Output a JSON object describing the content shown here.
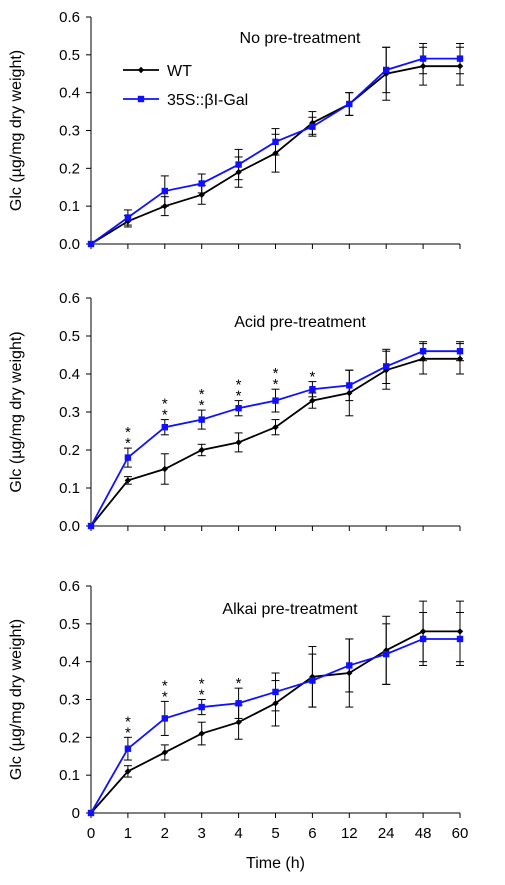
{
  "chart_data": [
    {
      "type": "line",
      "title": "No pre-treatment",
      "xlabel": "",
      "ylabel": "Glc (µg/mg dry weight)",
      "ylim": [
        0,
        0.6
      ],
      "yticks": [
        "0.0",
        "0.1",
        "0.2",
        "0.3",
        "0.4",
        "0.5",
        "0.6"
      ],
      "categories": [
        "0",
        "1",
        "2",
        "3",
        "4",
        "5",
        "6",
        "12",
        "24",
        "48",
        "60"
      ],
      "show_x_tick_labels": false,
      "legend": true,
      "legend_position": "top-left",
      "series": [
        {
          "name": "WT",
          "color": "#000000",
          "marker": "diamond",
          "values": [
            0,
            0.06,
            0.1,
            0.13,
            0.19,
            0.24,
            0.32,
            0.37,
            0.45,
            0.47,
            0.47
          ],
          "errors": [
            0,
            0.015,
            0.025,
            0.025,
            0.04,
            0.05,
            0.03,
            0.03,
            0.07,
            0.05,
            0.05
          ]
        },
        {
          "name": "35S::βI-Gal",
          "color": "#1010ff",
          "marker": "square",
          "values": [
            0,
            0.07,
            0.14,
            0.16,
            0.21,
            0.27,
            0.31,
            0.37,
            0.46,
            0.49,
            0.49
          ],
          "errors": [
            0,
            0.02,
            0.04,
            0.025,
            0.04,
            0.035,
            0.025,
            0.03,
            0.06,
            0.04,
            0.04
          ]
        }
      ],
      "significance": []
    },
    {
      "type": "line",
      "title": "Acid pre-treatment",
      "xlabel": "",
      "ylabel": "Glc (µg/mg dry weight)",
      "ylim": [
        0,
        0.6
      ],
      "yticks": [
        "0.0",
        "0.1",
        "0.2",
        "0.3",
        "0.4",
        "0.5",
        "0.6"
      ],
      "categories": [
        "0",
        "1",
        "2",
        "3",
        "4",
        "5",
        "6",
        "12",
        "24",
        "48",
        "60"
      ],
      "show_x_tick_labels": false,
      "legend": false,
      "series": [
        {
          "name": "WT",
          "color": "#000000",
          "marker": "diamond",
          "values": [
            0,
            0.12,
            0.15,
            0.2,
            0.22,
            0.26,
            0.33,
            0.35,
            0.41,
            0.44,
            0.44
          ],
          "errors": [
            0,
            0.01,
            0.04,
            0.015,
            0.025,
            0.02,
            0.02,
            0.06,
            0.05,
            0.04,
            0.04
          ]
        },
        {
          "name": "35S::βI-Gal",
          "color": "#1010ff",
          "marker": "square",
          "values": [
            0,
            0.18,
            0.26,
            0.28,
            0.31,
            0.33,
            0.36,
            0.37,
            0.42,
            0.46,
            0.46
          ],
          "errors": [
            0,
            0.025,
            0.02,
            0.025,
            0.02,
            0.03,
            0.02,
            0.04,
            0.045,
            0.025,
            0.025
          ]
        }
      ],
      "significance": [
        {
          "category": "1",
          "label": "**"
        },
        {
          "category": "2",
          "label": "**"
        },
        {
          "category": "3",
          "label": "**"
        },
        {
          "category": "4",
          "label": "**"
        },
        {
          "category": "5",
          "label": "**"
        },
        {
          "category": "6",
          "label": "*"
        }
      ]
    },
    {
      "type": "line",
      "title": "Alkai pre-treatment",
      "xlabel": "Time (h)",
      "ylabel": "Glc (µg/mg dry weight)",
      "ylim": [
        0,
        0.6
      ],
      "yticks": [
        "0",
        "0.1",
        "0.2",
        "0.3",
        "0.4",
        "0.5",
        "0.6"
      ],
      "categories": [
        "0",
        "1",
        "2",
        "3",
        "4",
        "5",
        "6",
        "12",
        "24",
        "48",
        "60"
      ],
      "show_x_tick_labels": true,
      "legend": false,
      "series": [
        {
          "name": "WT",
          "color": "#000000",
          "marker": "diamond",
          "values": [
            0,
            0.11,
            0.16,
            0.21,
            0.24,
            0.29,
            0.36,
            0.37,
            0.43,
            0.48,
            0.48
          ],
          "errors": [
            0,
            0.015,
            0.02,
            0.03,
            0.045,
            0.06,
            0.08,
            0.09,
            0.09,
            0.08,
            0.08
          ]
        },
        {
          "name": "35S::βI-Gal",
          "color": "#1010ff",
          "marker": "square",
          "values": [
            0,
            0.17,
            0.25,
            0.28,
            0.29,
            0.32,
            0.35,
            0.39,
            0.42,
            0.46,
            0.46
          ],
          "errors": [
            0,
            0.03,
            0.045,
            0.02,
            0.04,
            0.05,
            0.07,
            0.07,
            0.08,
            0.07,
            0.07
          ]
        }
      ],
      "significance": [
        {
          "category": "1",
          "label": "**"
        },
        {
          "category": "2",
          "label": "**"
        },
        {
          "category": "3",
          "label": "**"
        },
        {
          "category": "4",
          "label": "*"
        }
      ]
    }
  ]
}
